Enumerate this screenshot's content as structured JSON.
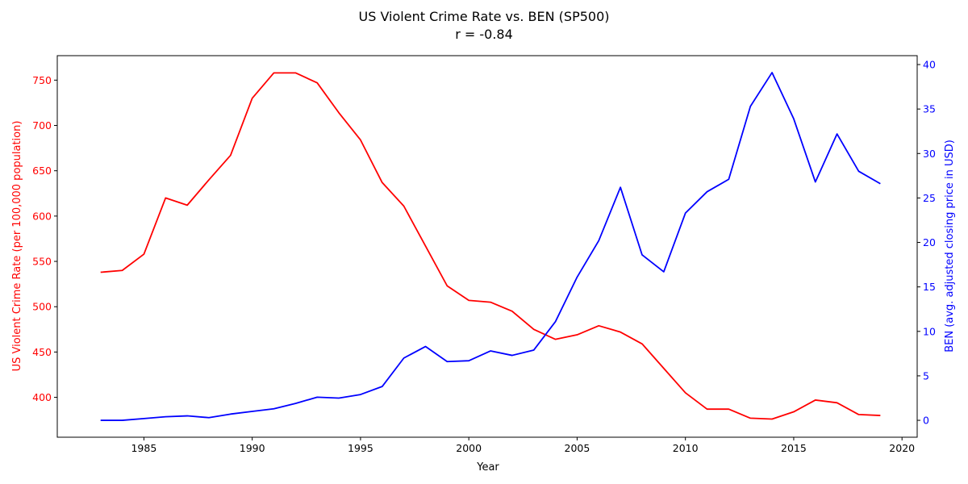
{
  "chart_data": {
    "type": "line",
    "title": "US Violent Crime Rate vs. BEN (SP500)",
    "subtitle": "r = -0.84",
    "xlabel": "Year",
    "ylabel_left": "US Violent Crime Rate (per 100,000 population)",
    "ylabel_right": "BEN (avg. adjusted closing price in USD)",
    "xlim": [
      1981,
      2020.7
    ],
    "ylim_left": [
      356,
      777
    ],
    "ylim_right": [
      -1.9,
      41.0
    ],
    "x_ticks": [
      1985,
      1990,
      1995,
      2000,
      2005,
      2010,
      2015,
      2020
    ],
    "y_ticks_left": [
      400,
      450,
      500,
      550,
      600,
      650,
      700,
      750
    ],
    "y_ticks_right": [
      0,
      5,
      10,
      15,
      20,
      25,
      30,
      35,
      40
    ],
    "colors": {
      "left": "#ff0000",
      "right": "#0000ff"
    },
    "x": [
      1983,
      1984,
      1985,
      1986,
      1987,
      1988,
      1989,
      1990,
      1991,
      1992,
      1993,
      1994,
      1995,
      1996,
      1997,
      1998,
      1999,
      2000,
      2001,
      2002,
      2003,
      2004,
      2005,
      2006,
      2007,
      2008,
      2009,
      2010,
      2011,
      2012,
      2013,
      2014,
      2015,
      2016,
      2017,
      2018,
      2019
    ],
    "series": [
      {
        "axis": "left",
        "values": [
          538,
          540,
          558,
          620,
          612,
          640,
          667,
          730,
          758,
          758,
          747,
          714,
          684,
          637,
          611,
          567,
          523,
          507,
          505,
          495,
          475,
          464,
          469,
          479,
          472,
          459,
          432,
          405,
          387,
          387,
          377,
          376,
          384,
          397,
          394,
          381,
          380
        ]
      },
      {
        "axis": "right",
        "values": [
          0.0,
          0.0,
          0.2,
          0.4,
          0.5,
          0.3,
          0.7,
          1.0,
          1.3,
          1.9,
          2.6,
          2.5,
          2.9,
          3.8,
          7.0,
          8.3,
          6.6,
          6.7,
          7.8,
          7.3,
          7.9,
          11.1,
          16.1,
          20.2,
          26.2,
          18.6,
          16.7,
          23.3,
          25.7,
          27.1,
          35.3,
          39.1,
          33.9,
          26.8,
          32.2,
          28.0,
          26.6
        ]
      }
    ]
  }
}
